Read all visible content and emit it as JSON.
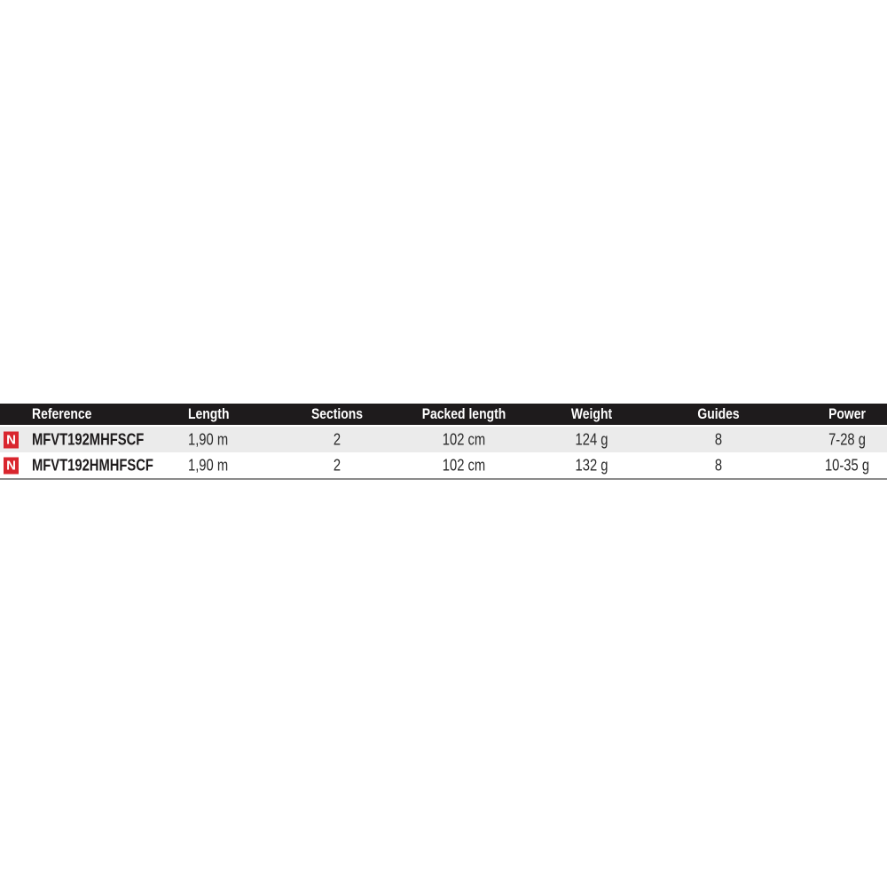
{
  "table": {
    "headers": [
      "Reference",
      "Length",
      "Sections",
      "Packed length",
      "Weight",
      "Guides",
      "Power"
    ],
    "badge_label": "N",
    "badge_color": "#d9262e",
    "rows": [
      {
        "new": true,
        "cells": [
          "MFVT192MHFSCF",
          "1,90 m",
          "2",
          "102 cm",
          "124 g",
          "8",
          "7-28 g"
        ]
      },
      {
        "new": true,
        "cells": [
          "MFVT192HMHFSCF",
          "1,90 m",
          "2",
          "102 cm",
          "132 g",
          "8",
          "10-35 g"
        ]
      }
    ]
  }
}
